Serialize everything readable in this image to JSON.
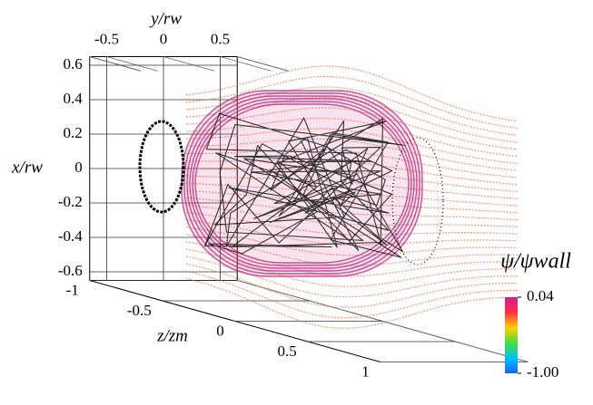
{
  "chart_data": {
    "type": "field-lines-3d",
    "y_label": "y/rw",
    "x_label": "x/rw",
    "z_label": "z/zm",
    "ylim": [
      -0.65,
      0.65
    ],
    "yticks": [
      -0.5,
      0,
      0.5
    ],
    "xlim": [
      -0.65,
      0.65
    ],
    "xticks": [
      0.6,
      0.4,
      0.2,
      0,
      -0.2,
      -0.4,
      -0.6
    ],
    "zlim": [
      -1,
      1
    ],
    "zticks": [
      -1,
      -0.5,
      0,
      0.5,
      1
    ],
    "colorbar": {
      "label": "ψ/ψwall",
      "ticks": [
        0.04,
        {
          "value": -1,
          "label": "-1.00"
        }
      ],
      "colors": [
        "#d02090",
        "#ff3040",
        "#ffd000",
        "#40e040",
        "#00c0ff",
        "#2060ff"
      ]
    }
  }
}
